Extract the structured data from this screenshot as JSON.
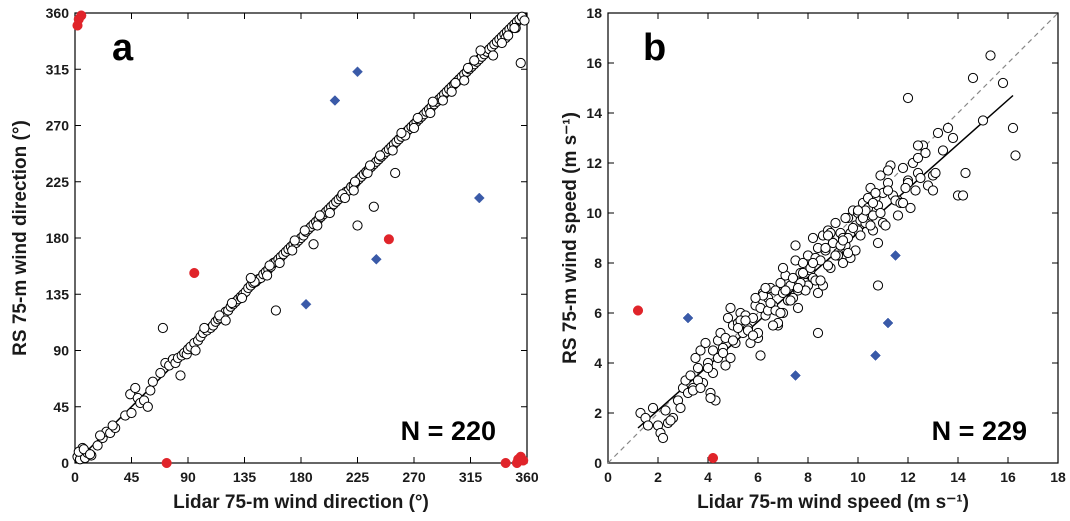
{
  "chart_data": [
    {
      "type": "scatter",
      "panel_label": "a",
      "xlabel": "Lidar 75-m wind direction (°)",
      "ylabel": "RS 75-m wind direction (°)",
      "xlim": [
        0,
        360
      ],
      "ylim": [
        0,
        360
      ],
      "xticks": [
        0,
        45,
        90,
        135,
        180,
        225,
        270,
        315,
        360
      ],
      "yticks": [
        0,
        45,
        90,
        135,
        180,
        225,
        270,
        315,
        360
      ],
      "annotation": "N = 220",
      "colors": {
        "open": "#000000",
        "red": "#e0242a",
        "blue": "#3a5aa8",
        "fit": "#000000",
        "one_to_one": "#888888"
      },
      "fit_line": [
        [
          0,
          0
        ],
        [
          360,
          360
        ]
      ],
      "one_to_one": [
        [
          0,
          0
        ],
        [
          360,
          360
        ]
      ],
      "series": [
        {
          "marker": "open-circle",
          "x": [
            2,
            4,
            6,
            8,
            10,
            13,
            18,
            22,
            25,
            28,
            32,
            40,
            44,
            48,
            50,
            52,
            55,
            58,
            62,
            68,
            72,
            75,
            78,
            80,
            82,
            85,
            87,
            89,
            90,
            92,
            95,
            98,
            100,
            102,
            105,
            108,
            110,
            112,
            114,
            116,
            118,
            120,
            122,
            124,
            126,
            128,
            130,
            132,
            134,
            136,
            138,
            140,
            142,
            144,
            146,
            148,
            150,
            152,
            154,
            156,
            158,
            160,
            162,
            164,
            166,
            168,
            170,
            172,
            174,
            176,
            178,
            180,
            182,
            184,
            186,
            188,
            190,
            192,
            194,
            196,
            198,
            200,
            202,
            204,
            206,
            208,
            210,
            212,
            214,
            216,
            218,
            220,
            222,
            224,
            226,
            228,
            230,
            232,
            234,
            236,
            238,
            240,
            242,
            244,
            246,
            248,
            250,
            252,
            254,
            256,
            258,
            260,
            262,
            264,
            266,
            268,
            270,
            272,
            274,
            276,
            278,
            280,
            282,
            284,
            286,
            288,
            290,
            292,
            294,
            296,
            298,
            300,
            302,
            304,
            306,
            308,
            310,
            312,
            314,
            316,
            318,
            320,
            322,
            324,
            326,
            328,
            330,
            332,
            334,
            336,
            338,
            340,
            342,
            344,
            346,
            348,
            350,
            352,
            354,
            356,
            3,
            7,
            12,
            20,
            30,
            45,
            60,
            70,
            84,
            96,
            103,
            115,
            125,
            133,
            143,
            153,
            163,
            173,
            183,
            193,
            203,
            213,
            223,
            233,
            243,
            253,
            263,
            273,
            283,
            293,
            303,
            313,
            323,
            333,
            343,
            351,
            140,
            155,
            175,
            195,
            215,
            222,
            235,
            260,
            285,
            300,
            318,
            340,
            355,
            160,
            120,
            238,
            190,
            225,
            255,
            270,
            310,
            345,
            350,
            358
          ],
          "y": [
            5,
            3,
            12,
            4,
            8,
            6,
            14,
            20,
            25,
            24,
            28,
            38,
            55,
            60,
            52,
            48,
            50,
            45,
            65,
            72,
            80,
            78,
            83,
            80,
            84,
            86,
            88,
            87,
            91,
            93,
            96,
            98,
            101,
            104,
            106,
            108,
            110,
            113,
            115,
            116,
            118,
            121,
            122,
            125,
            127,
            129,
            131,
            133,
            135,
            137,
            140,
            142,
            144,
            145,
            147,
            148,
            151,
            153,
            155,
            157,
            160,
            161,
            163,
            165,
            167,
            169,
            171,
            173,
            175,
            176,
            178,
            180,
            182,
            185,
            187,
            189,
            191,
            193,
            195,
            197,
            199,
            201,
            203,
            205,
            207,
            209,
            211,
            213,
            215,
            217,
            218,
            221,
            222,
            225,
            227,
            229,
            231,
            233,
            235,
            237,
            239,
            241,
            243,
            245,
            247,
            249,
            251,
            253,
            255,
            257,
            259,
            261,
            263,
            265,
            267,
            269,
            271,
            273,
            275,
            277,
            279,
            281,
            283,
            285,
            287,
            289,
            291,
            293,
            295,
            297,
            299,
            301,
            303,
            305,
            307,
            309,
            311,
            313,
            315,
            317,
            319,
            321,
            323,
            325,
            327,
            329,
            331,
            333,
            335,
            337,
            339,
            341,
            343,
            345,
            347,
            349,
            351,
            353,
            355,
            357,
            9,
            11,
            7,
            22,
            30,
            40,
            58,
            108,
            70,
            90,
            108,
            118,
            128,
            132,
            145,
            150,
            160,
            170,
            186,
            190,
            200,
            215,
            225,
            232,
            246,
            250,
            262,
            276,
            280,
            290,
            304,
            316,
            330,
            326,
            340,
            348,
            148,
            158,
            178,
            198,
            212,
            218,
            238,
            264,
            289,
            297,
            322,
            336,
            320,
            122,
            114,
            205,
            175,
            190,
            232,
            268,
            306,
            342,
            348,
            354
          ]
        },
        {
          "marker": "red-circle",
          "x": [
            2,
            3,
            5,
            95,
            73,
            250,
            343,
            352,
            353,
            355,
            357
          ],
          "y": [
            350,
            355,
            358,
            152,
            0,
            179,
            0,
            0,
            3,
            5,
            2
          ]
        },
        {
          "marker": "blue-diamond",
          "x": [
            184,
            207,
            225,
            240,
            322
          ],
          "y": [
            127,
            290,
            313,
            163,
            212
          ]
        }
      ]
    },
    {
      "type": "scatter",
      "panel_label": "b",
      "xlabel": "Lidar 75-m wind speed (m s⁻¹)",
      "ylabel": "RS 75-m wind speed (m s⁻¹)",
      "xlim": [
        0,
        18
      ],
      "ylim": [
        0,
        18
      ],
      "xticks": [
        0,
        2,
        4,
        6,
        8,
        10,
        12,
        14,
        16,
        18
      ],
      "yticks": [
        0,
        2,
        4,
        6,
        8,
        10,
        12,
        14,
        16,
        18
      ],
      "annotation": "N = 229",
      "colors": {
        "open": "#000000",
        "red": "#e0242a",
        "blue": "#3a5aa8",
        "fit": "#000000",
        "one_to_one": "#888888"
      },
      "fit_line": [
        [
          1.2,
          1.4
        ],
        [
          16.2,
          14.7
        ]
      ],
      "one_to_one": [
        [
          0,
          0
        ],
        [
          18,
          18
        ]
      ],
      "series": [
        {
          "marker": "open-circle",
          "x": [
            1.3,
            1.5,
            1.8,
            2.0,
            2.1,
            2.2,
            2.4,
            2.6,
            2.8,
            3.0,
            3.1,
            3.2,
            3.3,
            3.4,
            3.5,
            3.6,
            3.7,
            3.8,
            3.9,
            4.0,
            4.1,
            4.2,
            4.3,
            4.4,
            4.5,
            4.6,
            4.7,
            4.8,
            4.9,
            5.0,
            5.1,
            5.2,
            5.3,
            5.4,
            5.5,
            5.6,
            5.7,
            5.8,
            5.9,
            6.0,
            6.1,
            6.2,
            6.3,
            6.4,
            6.5,
            6.6,
            6.7,
            6.8,
            6.9,
            7.0,
            7.1,
            7.2,
            7.3,
            7.4,
            7.5,
            7.6,
            7.7,
            7.8,
            7.9,
            8.0,
            8.1,
            8.2,
            8.3,
            8.4,
            8.5,
            8.6,
            8.7,
            8.8,
            8.9,
            9.0,
            9.1,
            9.2,
            9.3,
            9.4,
            9.5,
            9.6,
            9.7,
            9.8,
            9.9,
            10.0,
            10.1,
            10.2,
            10.3,
            10.4,
            10.5,
            10.6,
            10.7,
            10.8,
            10.9,
            11.0,
            11.2,
            11.4,
            11.6,
            11.8,
            12.0,
            12.2,
            12.4,
            12.6,
            12.8,
            13.0,
            13.2,
            13.4,
            13.8,
            14.0,
            14.3,
            14.6,
            15.0,
            15.3,
            15.8,
            16.2,
            16.3,
            2.5,
            3.4,
            4.2,
            4.4,
            5.0,
            5.6,
            6.4,
            6.8,
            7.2,
            7.6,
            8.0,
            8.4,
            8.8,
            9.2,
            9.6,
            10.0,
            10.4,
            10.8,
            11.2,
            11.6,
            12.0,
            12.4,
            6.0,
            6.6,
            7.0,
            7.4,
            7.8,
            8.2,
            8.6,
            9.0,
            9.4,
            9.8,
            10.2,
            10.6,
            11.0,
            4.9,
            5.3,
            5.8,
            6.2,
            6.7,
            7.1,
            7.5,
            7.9,
            8.3,
            8.7,
            9.1,
            9.5,
            9.9,
            10.3,
            10.7,
            11.1,
            11.5,
            11.9,
            12.3,
            12.7,
            13.1,
            3.6,
            4.0,
            4.6,
            5.2,
            5.5,
            6.1,
            6.5,
            6.9,
            7.3,
            7.7,
            8.1,
            8.5,
            8.9,
            9.3,
            9.7,
            10.1,
            10.5,
            10.9,
            11.3,
            11.7,
            12.1,
            12.5,
            1.6,
            2.3,
            2.9,
            3.7,
            4.1,
            4.7,
            5.9,
            6.3,
            7.0,
            7.6,
            8.2,
            8.8,
            9.4,
            10.0,
            10.6,
            11.2,
            11.8,
            12.4,
            13.0,
            13.6,
            14.2,
            8.4,
            9.6,
            10.8,
            12.0
          ],
          "y": [
            2.0,
            1.8,
            2.2,
            1.5,
            1.2,
            1.0,
            1.6,
            1.8,
            2.5,
            3.0,
            3.3,
            2.8,
            3.5,
            3.0,
            4.2,
            3.8,
            4.5,
            3.2,
            4.8,
            4.0,
            2.8,
            4.5,
            2.5,
            4.9,
            5.2,
            4.6,
            5.0,
            5.8,
            4.2,
            5.5,
            4.8,
            5.6,
            6.0,
            5.2,
            5.9,
            5.4,
            4.8,
            5.8,
            6.3,
            5.0,
            6.2,
            6.8,
            5.9,
            6.6,
            7.0,
            6.3,
            6.9,
            5.5,
            7.2,
            6.8,
            7.5,
            6.5,
            7.1,
            7.4,
            8.1,
            6.9,
            7.6,
            8.0,
            7.2,
            8.3,
            7.7,
            9.0,
            8.2,
            8.6,
            8.1,
            9.1,
            8.5,
            9.3,
            7.8,
            8.8,
            9.6,
            8.4,
            9.2,
            9.0,
            8.7,
            9.8,
            9.2,
            10.1,
            9.5,
            10.0,
            9.7,
            10.4,
            9.6,
            10.2,
            11.0,
            9.9,
            10.6,
            10.3,
            11.5,
            10.8,
            11.2,
            10.7,
            10.5,
            11.8,
            11.3,
            12.0,
            11.6,
            12.7,
            11.1,
            11.5,
            13.2,
            12.5,
            13.0,
            10.7,
            11.6,
            15.4,
            13.7,
            16.3,
            15.2,
            13.4,
            12.3,
            1.7,
            2.9,
            3.6,
            4.2,
            4.9,
            5.3,
            6.1,
            5.6,
            6.5,
            6.2,
            7.1,
            6.8,
            7.9,
            8.3,
            9.0,
            9.3,
            10.6,
            8.8,
            10.9,
            9.9,
            11.2,
            12.2,
            5.2,
            5.5,
            6.0,
            6.6,
            7.6,
            7.4,
            7.1,
            8.8,
            8.0,
            9.4,
            9.8,
            9.3,
            9.6,
            6.2,
            5.7,
            5.1,
            6.7,
            6.1,
            6.9,
            8.7,
            6.9,
            7.3,
            8.6,
            8.3,
            9.8,
            8.5,
            10.1,
            10.8,
            9.5,
            10.5,
            11.0,
            10.9,
            12.4,
            11.6,
            3.3,
            3.8,
            4.4,
            5.4,
            5.7,
            4.3,
            6.4,
            6.0,
            6.5,
            7.2,
            7.8,
            7.3,
            9.2,
            8.7,
            8.2,
            9.1,
            9.5,
            10.0,
            11.9,
            10.4,
            10.2,
            11.4,
            1.5,
            2.1,
            2.2,
            3.0,
            2.6,
            3.9,
            6.6,
            7.0,
            7.8,
            7.0,
            8.0,
            9.1,
            8.9,
            10.1,
            10.4,
            11.7,
            10.4,
            12.7,
            10.9,
            13.4,
            10.7,
            5.2,
            8.4,
            7.1,
            14.6
          ]
        },
        {
          "marker": "red-circle",
          "x": [
            1.2,
            4.2
          ],
          "y": [
            6.1,
            0.2
          ]
        },
        {
          "marker": "blue-diamond",
          "x": [
            3.2,
            7.5,
            10.7,
            11.2,
            11.5
          ],
          "y": [
            5.8,
            3.5,
            4.3,
            5.6,
            8.3
          ]
        }
      ]
    }
  ]
}
